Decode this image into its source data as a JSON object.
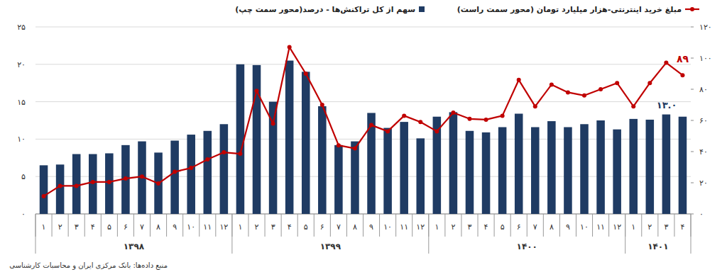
{
  "chart_data": {
    "type": "bar",
    "categories": [
      "۱",
      "۲",
      "۳",
      "۴",
      "۵",
      "۶",
      "۷",
      "۸",
      "۹",
      "۱۰",
      "۱۱",
      "۱۲",
      "۱",
      "۲",
      "۳",
      "۴",
      "۵",
      "۶",
      "۷",
      "۸",
      "۹",
      "۱۰",
      "۱۱",
      "۱۲",
      "۱",
      "۲",
      "۳",
      "۴",
      "۵",
      "۶",
      "۷",
      "۸",
      "۹",
      "۱۰",
      "۱۱",
      "۱۲",
      "۱",
      "۲",
      "۳",
      "۴"
    ],
    "x_groups": [
      {
        "label": "۱۳۹۸",
        "count": 12
      },
      {
        "label": "۱۳۹۹",
        "count": 12
      },
      {
        "label": "۱۴۰۰",
        "count": 12
      },
      {
        "label": "۱۴۰۱",
        "count": 4
      }
    ],
    "series": [
      {
        "name": "سهم از کل تراکنش‌ها - درصد(محور سمت چپ)",
        "type": "bar",
        "color": "#1f3b63",
        "values": [
          6.5,
          6.6,
          8.0,
          8.0,
          8.1,
          9.2,
          9.7,
          8.2,
          9.8,
          10.6,
          11.1,
          12.0,
          20.0,
          19.9,
          15.0,
          20.5,
          19.0,
          14.4,
          9.2,
          9.7,
          13.5,
          11.5,
          12.3,
          10.1,
          13.0,
          13.6,
          11.1,
          10.9,
          11.6,
          13.4,
          11.6,
          12.4,
          11.6,
          12.0,
          12.5,
          11.3,
          12.7,
          12.6,
          13.3,
          13.0
        ],
        "value_labels": [
          null,
          null,
          null,
          null,
          null,
          null,
          null,
          null,
          null,
          null,
          null,
          null,
          null,
          null,
          null,
          null,
          null,
          null,
          null,
          null,
          null,
          null,
          null,
          null,
          null,
          null,
          null,
          null,
          null,
          null,
          null,
          null,
          null,
          null,
          null,
          null,
          null,
          null,
          null,
          "۱۳.۰"
        ]
      },
      {
        "name": "مبلغ خرید اینترنتی-هزار میلیارد تومان (محور سمت راست)",
        "type": "line",
        "axis": "y2",
        "color": "#c00000",
        "marker": "circle",
        "line_style": "solid",
        "values": [
          11.4,
          18,
          18,
          20.5,
          20.5,
          22.7,
          24,
          19.5,
          27,
          29.5,
          35,
          39.5,
          38.6,
          79,
          58,
          107,
          90,
          70,
          44,
          42,
          57,
          53,
          63,
          59,
          53,
          65,
          61,
          60.5,
          63,
          86,
          69,
          83,
          78,
          76,
          80,
          84,
          69,
          84,
          97,
          89
        ],
        "value_labels": [
          null,
          null,
          null,
          null,
          null,
          null,
          null,
          null,
          null,
          null,
          null,
          null,
          null,
          null,
          null,
          null,
          null,
          null,
          null,
          null,
          null,
          null,
          null,
          null,
          null,
          null,
          null,
          null,
          null,
          null,
          null,
          null,
          null,
          null,
          null,
          null,
          null,
          null,
          null,
          "۸۹"
        ]
      }
    ],
    "ylim": [
      0,
      25
    ],
    "yticks": [
      {
        "value": 0,
        "label": "۰"
      },
      {
        "value": 5,
        "label": "۵"
      },
      {
        "value": 10,
        "label": "۱۰"
      },
      {
        "value": 15,
        "label": "۱۵"
      },
      {
        "value": 20,
        "label": "۲۰"
      },
      {
        "value": 25,
        "label": "۲۵"
      }
    ],
    "y2lim": [
      0,
      120
    ],
    "y2ticks": [
      {
        "value": 0,
        "label": "۰"
      },
      {
        "value": 20,
        "label": "۲۰"
      },
      {
        "value": 40,
        "label": "۴۰"
      },
      {
        "value": 60,
        "label": "۶۰"
      },
      {
        "value": 80,
        "label": "۸۰"
      },
      {
        "value": 100,
        "label": "۱۰۰"
      },
      {
        "value": 120,
        "label": "۱۲۰"
      }
    ],
    "grid": true,
    "legend": "top",
    "source": "منبع داده‌ها: بانک مرکزی ایران و محاسبات کارشناسی"
  }
}
